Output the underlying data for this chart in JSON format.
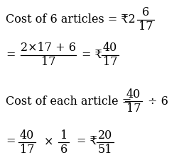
{
  "bg_color": "#ffffff",
  "text_color": "#000000",
  "fontsize": 11.5
}
